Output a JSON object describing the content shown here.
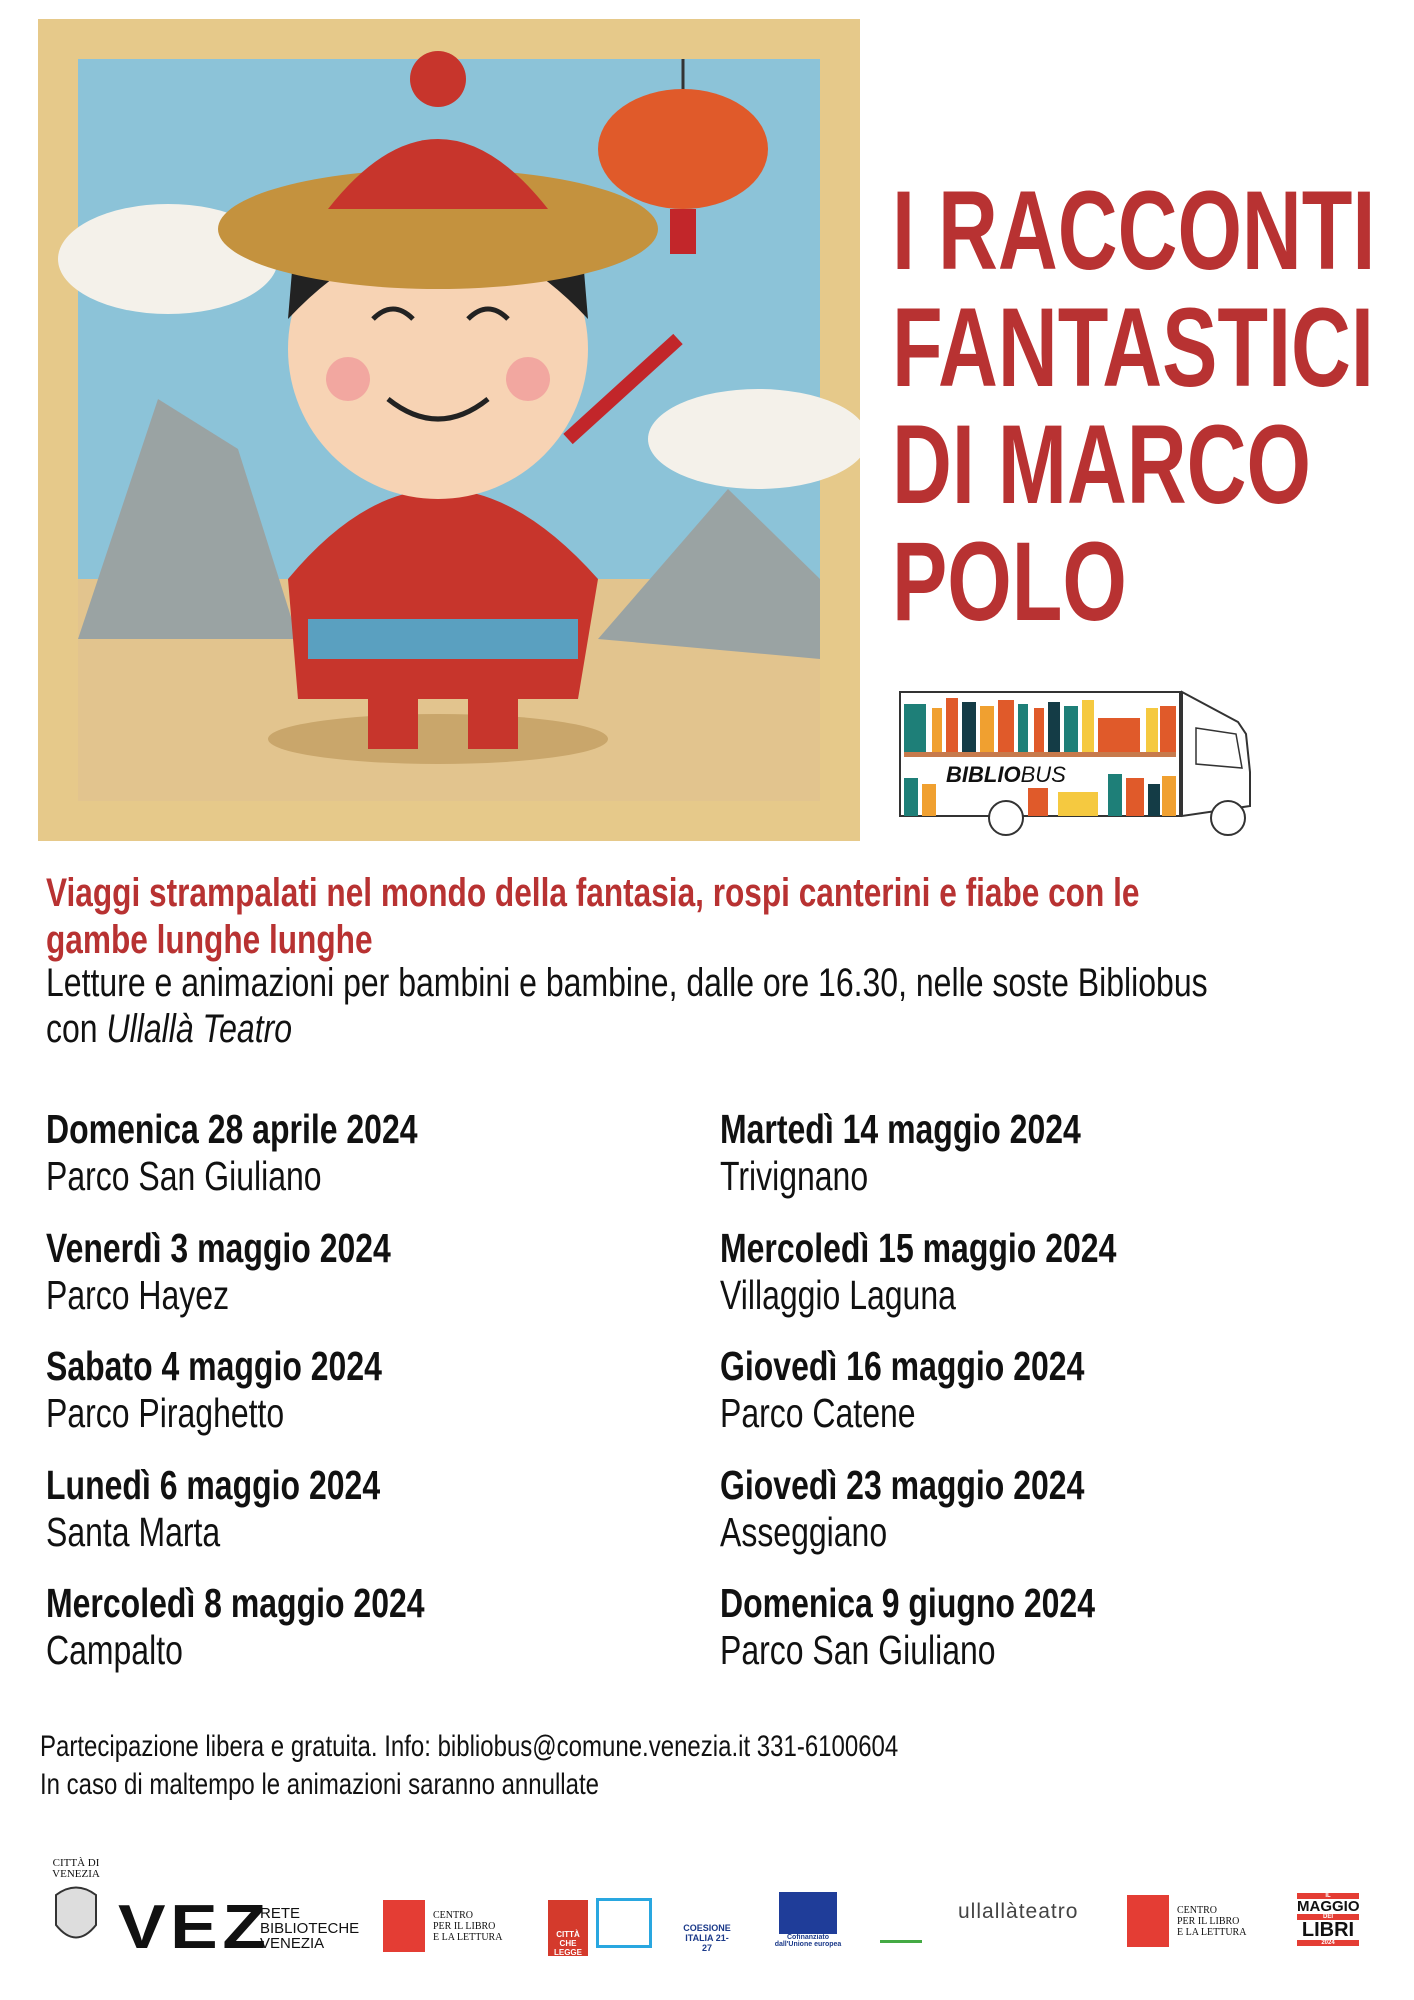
{
  "title": {
    "lines": [
      "I RACCONTI",
      "FANTASTICI",
      "DI MARCO",
      "POLO"
    ]
  },
  "bus": {
    "label_bold": "BIBLIO",
    "label_light": "BUS"
  },
  "subtitle": {
    "lines": [
      "Viaggi strampalati nel mondo della fantasia, rospi canterini e fiabe con le",
      "gambe lunghe lunghe"
    ]
  },
  "description": {
    "line1": "Letture e animazioni per bambini e bambine, dalle ore 16.30, nelle soste Bibliobus",
    "line2_prefix": "con ",
    "line2_italic": "Ullallà Teatro"
  },
  "events": [
    {
      "date": "Domenica 28 aprile 2024",
      "place": "Parco San Giuliano"
    },
    {
      "date": "Venerdì 3 maggio 2024",
      "place": "Parco Hayez"
    },
    {
      "date": "Sabato 4 maggio 2024",
      "place": "Parco Piraghetto"
    },
    {
      "date": "Lunedì 6 maggio 2024",
      "place": "Santa Marta"
    },
    {
      "date": "Mercoledì 8 maggio 2024",
      "place": "Campalto"
    },
    {
      "date": "Martedì 14 maggio 2024",
      "place": "Trivignano"
    },
    {
      "date": "Mercoledì 15 maggio 2024",
      "place": "Villaggio Laguna"
    },
    {
      "date": "Giovedì 16 maggio 2024",
      "place": "Parco Catene"
    },
    {
      "date": "Giovedì 23 maggio 2024",
      "place": "Asseggiano"
    },
    {
      "date": "Domenica 9 giugno 2024",
      "place": "Parco San Giuliano"
    }
  ],
  "footer": {
    "line1": "Partecipazione libera e gratuita. Info: bibliobus@comune.venezia.it 331-6100604",
    "line2": "In caso di maltempo le animazioni saranno annullate"
  },
  "logos": {
    "venezia": "CITTÀ DI VENEZIA",
    "vez": "VEZ",
    "rete": [
      "RETE",
      "BIBLIOTECHE",
      "VENEZIA"
    ],
    "cepell": [
      "CENTRO",
      "PER IL LIBRO",
      "E LA LETTURA"
    ],
    "citta_che_legge": "CITTÀ CHE LEGGE",
    "coesione": "COESIONE ITALIA 21-27",
    "eu": [
      "Cofinanziato",
      "dall'Unione europea"
    ],
    "ullalla": "ullallàteatro",
    "maggio": [
      "IL",
      "MAGGIO",
      "DEI",
      "LIBRI",
      "2024"
    ]
  },
  "colors": {
    "accent": "#b83232"
  }
}
